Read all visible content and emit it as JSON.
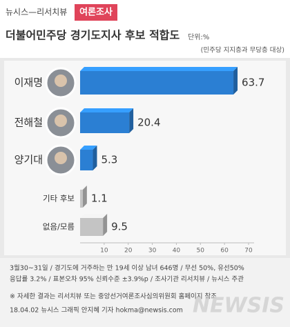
{
  "header": {
    "brand": "뉴시스—리서치뷰",
    "badge": "여론조사"
  },
  "chart_data": {
    "type": "bar",
    "orientation": "horizontal",
    "title": "더불어민주당 경기도지사 후보 적합도",
    "unit": "단위:%",
    "subtitle": "(민주당 지지층과 무당층 대상)",
    "categories": [
      "이재명",
      "전해철",
      "양기대",
      "기타 후보",
      "없음/모름"
    ],
    "values": [
      63.7,
      20.4,
      5.3,
      1.1,
      9.5
    ],
    "colors": [
      "#2b7fd3",
      "#2b7fd3",
      "#2b7fd3",
      "#c4c4c4",
      "#c4c4c4"
    ],
    "xlim": [
      0,
      70
    ],
    "xticks": [
      10,
      20,
      30,
      40,
      50,
      60,
      70
    ]
  },
  "notes": [
    "3월30~31일 / 경기도에 거주하는 만 19세 이상 남녀 646명 / 무선 50%, 유선50%",
    "응답률 3.2% / 표본오차 95% 신뢰수준 ±3.9%p / 조사기관 리서치뷰 / 뉴시스 주관",
    "※ 자세한 결과는 리서치뷰 또는 중앙선거여론조사심의위원회 홈페이지 참조",
    "18.04.02 뉴시스 그래픽 안지혜 기자 hokma@newsis.com"
  ],
  "watermark": "NEWSIS"
}
